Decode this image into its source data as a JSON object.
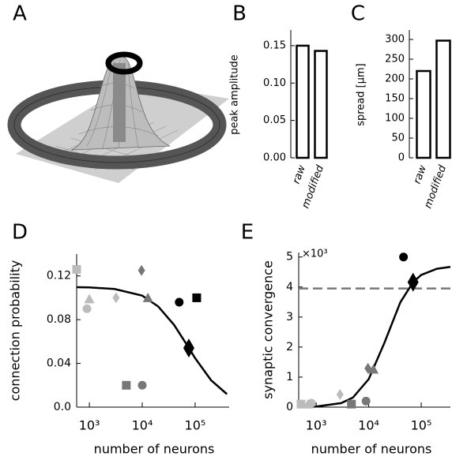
{
  "chart_data": [
    {
      "type": "illustration",
      "panel_label": "A"
    },
    {
      "type": "bar",
      "panel_label": "B",
      "ylabel": "peak amplitude",
      "categories": [
        "raw",
        "modified"
      ],
      "values": [
        0.15,
        0.143
      ],
      "ylim": [
        0,
        0.171
      ],
      "yticks": [
        {
          "value": 0,
          "label": "0.00"
        },
        0.05,
        {
          "value": 0.1,
          "label": "0.10"
        },
        0.15
      ],
      "color": "#ffffff",
      "edgecolor": "#000000"
    },
    {
      "type": "bar",
      "panel_label": "C",
      "ylabel": "spread [μm]",
      "categories": [
        "raw",
        "modified"
      ],
      "values": [
        220,
        297
      ],
      "ylim": [
        0,
        324
      ],
      "yticks": [
        0,
        50,
        100,
        150,
        200,
        250,
        300
      ],
      "color": "#ffffff",
      "edgecolor": "#000000"
    },
    {
      "type": "scatter",
      "panel_label": "D",
      "xlabel": "number of neurons",
      "ylabel": "connection probability",
      "xscale": "log",
      "xlim": [
        575,
        440000
      ],
      "xticks": [
        {
          "value": 1000,
          "label": "10³"
        },
        {
          "value": 10000,
          "label": "10⁴"
        },
        {
          "value": 100000,
          "label": "10⁵"
        }
      ],
      "ylim": [
        0,
        0.14
      ],
      "yticks": [
        {
          "value": 0,
          "label": "0.0"
        },
        0.04,
        0.08,
        0.12
      ],
      "points": {
        "x": [
          575,
          1000,
          900,
          3200,
          9700,
          12800,
          5000,
          10000,
          50000,
          107000,
          76000
        ],
        "y": [
          0.126,
          0.099,
          0.09,
          0.1,
          0.125,
          0.1,
          0.02,
          0.02,
          0.096,
          0.1,
          0.054
        ],
        "marker": [
          "square",
          "triangle",
          "circle",
          "diamond",
          "diamond",
          "triangle",
          "square",
          "circle",
          "circle",
          "square",
          "large-diamond"
        ],
        "color": [
          "#bbbbbb",
          "#bbbbbb",
          "#bbbbbb",
          "#bbbbbb",
          "#777777",
          "#777777",
          "#777777",
          "#777777",
          "#000000",
          "#000000",
          "#000000"
        ]
      },
      "curve": {
        "x": [
          575,
          1000,
          3000,
          10000,
          20000,
          40000,
          70000,
          100000,
          200000,
          400000
        ],
        "y": [
          0.1097,
          0.1095,
          0.108,
          0.102,
          0.0921,
          0.0752,
          0.0569,
          0.0448,
          0.0246,
          0.0119
        ],
        "color": "#000000"
      }
    },
    {
      "type": "scatter",
      "panel_label": "E",
      "xlabel": "number of neurons",
      "ylabel": "synaptic convergence",
      "y_multiplier": "×10³",
      "xscale": "log",
      "xlim": [
        465,
        360000
      ],
      "xticks": [
        {
          "value": 1000,
          "label": "10³"
        },
        {
          "value": 10000,
          "label": "10⁴"
        },
        {
          "value": 100000,
          "label": "10⁵"
        }
      ],
      "ylim": [
        0,
        5.15
      ],
      "yticks": [
        0,
        1,
        2,
        3,
        4,
        5
      ],
      "hline": 3.95,
      "hline_color": "#777777",
      "points": {
        "x": [
          515,
          700,
          810,
          2850,
          9700,
          12300,
          4700,
          8900,
          46000,
          70000
        ],
        "y": [
          0.1,
          0.1,
          0.13,
          0.42,
          1.29,
          1.26,
          0.1,
          0.2,
          5.0,
          4.16
        ],
        "marker": [
          "square",
          "triangle",
          "circle",
          "diamond",
          "diamond",
          "triangle",
          "square",
          "circle",
          "circle",
          "large-diamond"
        ],
        "color": [
          "#bbbbbb",
          "#bbbbbb",
          "#bbbbbb",
          "#bbbbbb",
          "#777777",
          "#777777",
          "#777777",
          "#777777",
          "#000000",
          "#000000"
        ]
      },
      "curve": {
        "x": [
          500,
          1000,
          3000,
          5000,
          10000,
          20000,
          40000,
          70000,
          100000,
          200000,
          360000
        ],
        "y": [
          0.0058,
          0.0198,
          0.134,
          0.318,
          0.934,
          2.15,
          3.49,
          4.16,
          4.4,
          4.61,
          4.67
        ],
        "color": "#000000"
      }
    }
  ]
}
